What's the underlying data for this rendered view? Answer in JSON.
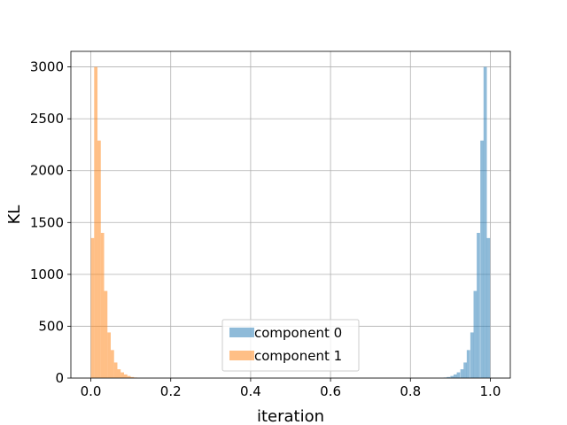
{
  "chart_data": {
    "type": "bar",
    "title": "",
    "xlabel": "iteration",
    "ylabel": "KL",
    "xlim": [
      -0.05,
      1.05
    ],
    "ylim": [
      0,
      3150
    ],
    "grid": true,
    "legend_position": "lower center",
    "x_ticks": [
      0.0,
      0.2,
      0.4,
      0.6,
      0.8,
      1.0
    ],
    "x_tick_labels": [
      "0.0",
      "0.2",
      "0.4",
      "0.6",
      "0.8",
      "1.0"
    ],
    "y_ticks": [
      0,
      500,
      1000,
      1500,
      2000,
      2500,
      3000
    ],
    "y_tick_labels": [
      "0",
      "500",
      "1000",
      "1500",
      "2000",
      "2500",
      "3000"
    ],
    "bin_width": 0.0083,
    "series": [
      {
        "name": "component 0",
        "color": "#1f77b4",
        "opacity": 0.5,
        "bin_starts": [
          0.883,
          0.891,
          0.9,
          0.908,
          0.916,
          0.925,
          0.933,
          0.941,
          0.95,
          0.958,
          0.966,
          0.975,
          0.983,
          0.991
        ],
        "values": [
          5,
          10,
          20,
          35,
          55,
          85,
          150,
          270,
          440,
          840,
          1400,
          2290,
          3000,
          1350
        ]
      },
      {
        "name": "component 1",
        "color": "#ff7f0e",
        "opacity": 0.5,
        "bin_starts": [
          0.0,
          0.0083,
          0.0166,
          0.0249,
          0.0332,
          0.0415,
          0.0498,
          0.0581,
          0.0664,
          0.0747,
          0.083,
          0.0913,
          0.0996,
          0.1079
        ],
        "values": [
          1350,
          3000,
          2290,
          1400,
          840,
          440,
          270,
          150,
          85,
          55,
          35,
          20,
          10,
          5
        ]
      }
    ]
  }
}
